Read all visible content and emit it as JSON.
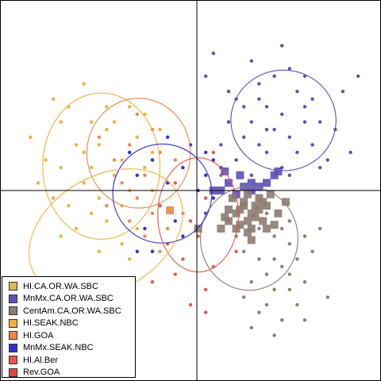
{
  "chart_data": {
    "type": "scatter",
    "title": "",
    "xlabel": "",
    "ylabel": "",
    "xlim": [
      -2.6,
      2.4
    ],
    "ylim": [
      -2.5,
      2.5
    ],
    "grid": false,
    "axes_lines": "through origin",
    "legend_position": "bottom-left",
    "series": [
      {
        "name": "HI.CA.OR.WA.SBC",
        "color": "#d8b858",
        "points": [],
        "ellipse": null
      },
      {
        "name": "MnMx.CA.OR.WA.SBC",
        "color": "#5b4fb8",
        "points": [
          [
            0.1,
            1.5
          ],
          [
            0.2,
            1.8
          ],
          [
            0.4,
            1.3
          ],
          [
            0.5,
            1.2
          ],
          [
            0.6,
            1.1
          ],
          [
            0.7,
            0.9
          ],
          [
            0.8,
            1.4
          ],
          [
            0.9,
            0.8
          ],
          [
            1.0,
            1.5
          ],
          [
            1.1,
            1.0
          ],
          [
            1.2,
            0.7
          ],
          [
            1.3,
            1.3
          ],
          [
            1.4,
            1.1
          ],
          [
            1.5,
            0.6
          ],
          [
            1.6,
            0.9
          ],
          [
            1.7,
            0.4
          ],
          [
            1.8,
            0.8
          ],
          [
            0.5,
            0.4
          ],
          [
            0.7,
            0.2
          ],
          [
            0.9,
            0.5
          ],
          [
            1.1,
            0.3
          ],
          [
            1.3,
            0.5
          ],
          [
            0.6,
            0.7
          ],
          [
            0.8,
            0.6
          ],
          [
            1.0,
            0.8
          ],
          [
            1.2,
            1.6
          ],
          [
            1.4,
            0.9
          ],
          [
            1.5,
            1.2
          ],
          [
            1.6,
            0.3
          ],
          [
            0.3,
            0.6
          ],
          [
            0.9,
            1.1
          ],
          [
            1.1,
            1.9
          ],
          [
            0.7,
            1.7
          ],
          [
            1.9,
            1.3
          ],
          [
            2.0,
            0.5
          ],
          [
            2.1,
            1.5
          ],
          [
            1.4,
            1.5
          ],
          [
            0.4,
            0.9
          ],
          [
            1.2,
            0.2
          ],
          [
            0.8,
            1.2
          ]
        ],
        "squares": [
          [
            0.4,
            0.1
          ],
          [
            0.6,
            0.05
          ],
          [
            0.7,
            0.1
          ],
          [
            0.8,
            0.05
          ],
          [
            1.0,
            0.2
          ],
          [
            0.5,
            -0.05
          ],
          [
            0.3,
            0.0
          ],
          [
            0.2,
            0.0
          ],
          [
            0.9,
            0.1
          ],
          [
            0.7,
            0.0
          ],
          [
            1.05,
            0.25
          ],
          [
            0.35,
            0.25
          ],
          [
            0.55,
            0.2
          ]
        ],
        "ellipse": {
          "cx": 1.12,
          "cy": 0.92,
          "rx": 0.69,
          "ry": 0.66,
          "rot": 0
        }
      },
      {
        "name": "CentAm.CA.OR.WA.SBC",
        "color": "#8c7c70",
        "points": [
          [
            0.6,
            -0.8
          ],
          [
            0.8,
            -0.9
          ],
          [
            1.0,
            -0.6
          ],
          [
            1.2,
            -0.7
          ],
          [
            0.9,
            -1.1
          ],
          [
            1.1,
            -1.0
          ],
          [
            1.3,
            -0.9
          ],
          [
            1.0,
            -1.3
          ],
          [
            0.7,
            -1.2
          ],
          [
            1.2,
            -1.3
          ],
          [
            1.4,
            -0.6
          ],
          [
            0.8,
            -0.5
          ],
          [
            0.5,
            -0.6
          ],
          [
            1.3,
            -1.5
          ],
          [
            0.9,
            -1.5
          ],
          [
            1.1,
            -1.7
          ],
          [
            1.2,
            -0.4
          ],
          [
            1.5,
            -0.8
          ],
          [
            0.6,
            -1.4
          ],
          [
            0.8,
            -1.6
          ],
          [
            1.4,
            -1.2
          ],
          [
            1.0,
            -0.9
          ],
          [
            1.6,
            -0.5
          ],
          [
            1.0,
            -1.9
          ],
          [
            0.9,
            -0.3
          ],
          [
            1.4,
            -1.7
          ],
          [
            1.2,
            -1.1
          ],
          [
            0.7,
            -1.8
          ],
          [
            1.7,
            -1.4
          ],
          [
            1.1,
            -0.5
          ]
        ],
        "squares": [
          [
            0.4,
            -0.4
          ],
          [
            0.5,
            -0.3
          ],
          [
            0.6,
            -0.2
          ],
          [
            0.7,
            -0.3
          ],
          [
            0.8,
            -0.1
          ],
          [
            0.9,
            -0.2
          ],
          [
            0.65,
            -0.4
          ],
          [
            0.75,
            -0.35
          ],
          [
            0.5,
            -0.5
          ],
          [
            0.85,
            -0.4
          ],
          [
            1.05,
            -0.3
          ],
          [
            0.6,
            -0.15
          ],
          [
            0.7,
            -0.5
          ],
          [
            0.55,
            -0.25
          ],
          [
            0.8,
            -0.25
          ],
          [
            0.9,
            -0.5
          ],
          [
            0.45,
            -0.1
          ],
          [
            0.95,
            -0.05
          ],
          [
            0.65,
            -0.55
          ],
          [
            1.15,
            -0.15
          ],
          [
            0.75,
            -0.2
          ],
          [
            0.35,
            -0.35
          ],
          [
            0.55,
            -0.45
          ],
          [
            0.85,
            -0.15
          ],
          [
            0.65,
            -0.05
          ],
          [
            0.7,
            -0.65
          ],
          [
            0.3,
            -0.5
          ],
          [
            0.0,
            -0.5
          ],
          [
            1.0,
            -0.45
          ],
          [
            0.4,
            -0.25
          ]
        ],
        "ellipse": {
          "cx": 0.67,
          "cy": -0.63,
          "rx": 0.64,
          "ry": 0.68,
          "rot": 0
        }
      },
      {
        "name": "HI.SEAK.NBC",
        "color": "#f0b03c",
        "points": [
          [
            -1.8,
            0.9
          ],
          [
            -1.6,
            0.6
          ],
          [
            -1.4,
            0.3
          ],
          [
            -1.2,
            0.8
          ],
          [
            -1.0,
            0.4
          ],
          [
            -0.8,
            0.7
          ],
          [
            -1.5,
            0.1
          ],
          [
            -1.3,
            -0.1
          ],
          [
            -1.1,
            0.2
          ],
          [
            -0.9,
            0.0
          ],
          [
            -0.7,
            0.3
          ],
          [
            -1.7,
            -0.2
          ],
          [
            -1.4,
            -0.3
          ],
          [
            -1.2,
            -0.4
          ],
          [
            -1.0,
            -0.2
          ],
          [
            -0.8,
            -0.5
          ],
          [
            -1.6,
            -0.5
          ],
          [
            -2.0,
            0.4
          ],
          [
            -1.9,
            -0.1
          ],
          [
            -1.5,
            0.5
          ],
          [
            -1.3,
            0.6
          ],
          [
            -1.1,
            0.9
          ],
          [
            -0.9,
            1.1
          ],
          [
            -0.6,
            0.5
          ],
          [
            -1.7,
            1.1
          ],
          [
            -1.0,
            -0.7
          ],
          [
            -1.8,
            0.3
          ],
          [
            -0.6,
            0.0
          ],
          [
            -1.4,
            0.9
          ],
          [
            -1.2,
            1.1
          ],
          [
            -2.2,
            0.7
          ],
          [
            -2.1,
            0.1
          ],
          [
            -1.8,
            -0.6
          ],
          [
            -1.3,
            -0.8
          ],
          [
            -0.9,
            -0.9
          ],
          [
            -1.6,
            -1.2
          ],
          [
            -1.9,
            1.2
          ],
          [
            -1.5,
            1.4
          ],
          [
            -0.7,
            1.0
          ],
          [
            -0.5,
            0.8
          ]
        ],
        "ellipse": {
          "cx": -1.27,
          "cy": 0.32,
          "rx": 0.77,
          "ry": 0.96,
          "rot": 0
        }
      },
      {
        "name": "HI.GOA",
        "color": "#e8894c",
        "points": [
          [
            -1.1,
            0.4
          ],
          [
            -0.9,
            0.6
          ],
          [
            -0.7,
            0.2
          ],
          [
            -0.5,
            0.5
          ],
          [
            -0.8,
            -0.1
          ],
          [
            -0.6,
            -0.3
          ],
          [
            -1.0,
            0.1
          ],
          [
            -0.4,
            0.1
          ],
          [
            -0.3,
            0.4
          ],
          [
            -0.9,
            -0.4
          ],
          [
            -0.7,
            -0.6
          ],
          [
            -0.5,
            -0.8
          ],
          [
            -1.2,
            -0.2
          ],
          [
            -0.4,
            -0.5
          ],
          [
            -0.6,
            0.8
          ],
          [
            -0.2,
            -0.3
          ],
          [
            -1.3,
            0.7
          ],
          [
            -0.8,
            1.0
          ]
        ],
        "squares": [
          [
            -0.37,
            -0.26
          ]
        ],
        "ellipse": {
          "cx": -0.78,
          "cy": 0.49,
          "rx": 0.68,
          "ry": 0.72,
          "rot": 0
        }
      },
      {
        "name": "MnMx.SEAK.NBC",
        "color": "#2f2fd8",
        "points": [
          [
            -0.8,
            0.2
          ],
          [
            -0.6,
            0.4
          ],
          [
            -0.4,
            0.1
          ],
          [
            -0.2,
            0.3
          ],
          [
            -0.5,
            -0.2
          ],
          [
            -0.3,
            -0.4
          ],
          [
            -0.7,
            -0.5
          ],
          [
            -0.1,
            0.6
          ],
          [
            0.1,
            0.2
          ],
          [
            0.2,
            -0.1
          ],
          [
            -0.9,
            0.5
          ],
          [
            -0.4,
            0.7
          ],
          [
            0.1,
            0.5
          ],
          [
            -0.6,
            -0.8
          ],
          [
            0.2,
            0.4
          ],
          [
            -0.2,
            -0.6
          ],
          [
            -0.8,
            -0.8
          ],
          [
            0.0,
            0.0
          ],
          [
            0.3,
            0.3
          ],
          [
            0.1,
            -0.3
          ]
        ],
        "ellipse": {
          "cx": -0.47,
          "cy": -0.04,
          "rx": 0.65,
          "ry": 0.65,
          "rot": 0
        }
      },
      {
        "name": "HI.Al.Ber",
        "color": "#e05a4a",
        "points": [
          [
            -0.5,
            -0.2
          ],
          [
            -0.3,
            0.1
          ],
          [
            -0.1,
            -0.4
          ],
          [
            0.1,
            -0.1
          ],
          [
            0.3,
            0.2
          ],
          [
            -0.4,
            -0.7
          ],
          [
            -0.2,
            -0.9
          ],
          [
            0.0,
            -0.6
          ],
          [
            0.2,
            -1.0
          ],
          [
            0.4,
            -0.4
          ],
          [
            -0.6,
            -1.2
          ],
          [
            0.1,
            -1.3
          ],
          [
            -0.3,
            -1.1
          ],
          [
            0.5,
            -0.8
          ],
          [
            0.2,
            0.5
          ],
          [
            -0.1,
            -1.5
          ],
          [
            0.1,
            -1.6
          ]
        ],
        "ellipse": {
          "cx": 0.0,
          "cy": -0.32,
          "rx": 0.53,
          "ry": 0.75,
          "rot": 0
        }
      },
      {
        "name": "Rev.GOA",
        "color": "#e24444",
        "points": [],
        "ellipse": null
      }
    ],
    "extra_ellipses": [
      {
        "series": "HI.SEAK.NBC",
        "cx": -1.21,
        "cy": -0.56,
        "rx": 1.08,
        "ry": 0.75,
        "rot": -30
      }
    ]
  },
  "legend": {
    "items": [
      {
        "label": "HI.CA.OR.WA.SBC",
        "color": "#d8b858"
      },
      {
        "label": "MnMx.CA.OR.WA.SBC",
        "color": "#5b4fb8"
      },
      {
        "label": "CentAm.CA.OR.WA.SBC",
        "color": "#8c7c70"
      },
      {
        "label": "HI.SEAK.NBC",
        "color": "#f0b03c"
      },
      {
        "label": "HI.GOA",
        "color": "#e8894c"
      },
      {
        "label": "MnMx.SEAK.NBC",
        "color": "#2f2fd8"
      },
      {
        "label": "HI.Al.Ber",
        "color": "#e05a4a"
      },
      {
        "label": "Rev.GOA",
        "color": "#e24444"
      }
    ]
  }
}
